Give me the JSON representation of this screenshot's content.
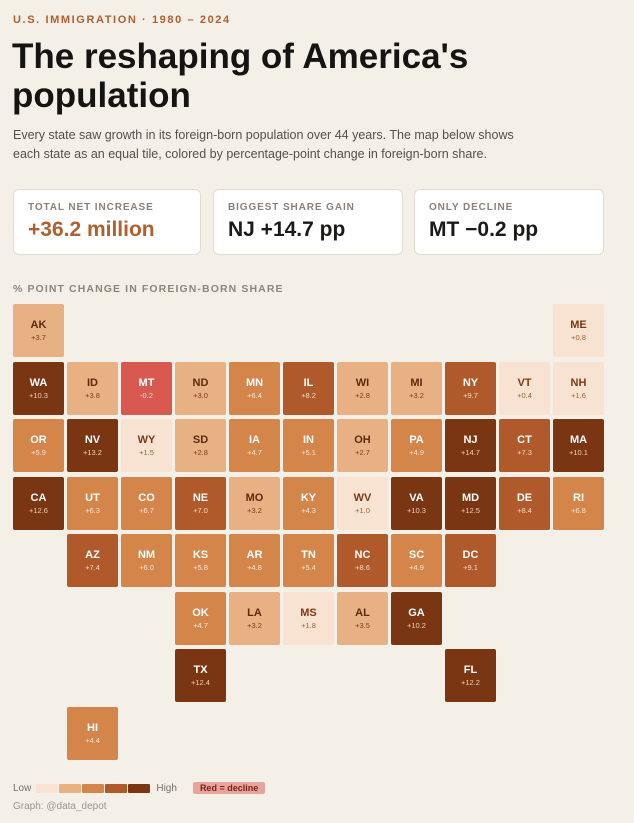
{
  "header": {
    "kicker": "U.S. IMMIGRATION · 1980 – 2024",
    "title": "The reshaping of America's population",
    "subtitle": "Every state saw growth in its foreign-born population over 44 years. The map below shows each state as an equal tile, colored by percentage-point change in foreign-born share."
  },
  "cards": [
    {
      "label": "TOTAL NET INCREASE",
      "value": "+36.2 million",
      "accent": true
    },
    {
      "label": "BIGGEST SHARE GAIN",
      "value": "NJ +14.7 pp",
      "accent": false
    },
    {
      "label": "ONLY DECLINE",
      "value": "MT −0.2 pp",
      "accent": false
    }
  ],
  "section_label": "% POINT CHANGE IN FOREIGN-BORN SHARE",
  "colors": {
    "background": "#f4efe7",
    "accent": "#b0602e",
    "scale": [
      "#f8e3d2",
      "#e8b184",
      "#d4854a",
      "#b0592b",
      "#7a3613"
    ],
    "decline": "#d9584f"
  },
  "chart_data": {
    "type": "heatmap",
    "layout": "tile-grid map",
    "value_unit": "pp",
    "states": [
      {
        "abbr": "AK",
        "label": "+3.7",
        "value": 3.7,
        "col": 0,
        "row": 0,
        "shade": 1
      },
      {
        "abbr": "ME",
        "label": "+0.8",
        "value": 0.8,
        "col": 10,
        "row": 0,
        "shade": 0
      },
      {
        "abbr": "WA",
        "label": "+10.3",
        "value": 10.3,
        "col": 0,
        "row": 1,
        "shade": 4
      },
      {
        "abbr": "ID",
        "label": "+3.8",
        "value": 3.8,
        "col": 1,
        "row": 1,
        "shade": 1
      },
      {
        "abbr": "MT",
        "label": "-0.2",
        "value": -0.2,
        "col": 2,
        "row": 1,
        "shade": "decline"
      },
      {
        "abbr": "ND",
        "label": "+3.0",
        "value": 3.0,
        "col": 3,
        "row": 1,
        "shade": 1
      },
      {
        "abbr": "MN",
        "label": "+6.4",
        "value": 6.4,
        "col": 4,
        "row": 1,
        "shade": 2
      },
      {
        "abbr": "IL",
        "label": "+8.2",
        "value": 8.2,
        "col": 5,
        "row": 1,
        "shade": 3
      },
      {
        "abbr": "WI",
        "label": "+2.8",
        "value": 2.8,
        "col": 6,
        "row": 1,
        "shade": 1
      },
      {
        "abbr": "MI",
        "label": "+3.2",
        "value": 3.2,
        "col": 7,
        "row": 1,
        "shade": 1
      },
      {
        "abbr": "NY",
        "label": "+9.7",
        "value": 9.7,
        "col": 8,
        "row": 1,
        "shade": 3
      },
      {
        "abbr": "VT",
        "label": "+0.4",
        "value": 0.4,
        "col": 9,
        "row": 1,
        "shade": 0
      },
      {
        "abbr": "NH",
        "label": "+1.6",
        "value": 1.6,
        "col": 10,
        "row": 1,
        "shade": 0
      },
      {
        "abbr": "OR",
        "label": "+5.9",
        "value": 5.9,
        "col": 0,
        "row": 2,
        "shade": 2
      },
      {
        "abbr": "NV",
        "label": "+13.2",
        "value": 13.2,
        "col": 1,
        "row": 2,
        "shade": 4
      },
      {
        "abbr": "WY",
        "label": "+1.5",
        "value": 1.5,
        "col": 2,
        "row": 2,
        "shade": 0
      },
      {
        "abbr": "SD",
        "label": "+2.8",
        "value": 2.8,
        "col": 3,
        "row": 2,
        "shade": 1
      },
      {
        "abbr": "IA",
        "label": "+4.7",
        "value": 4.7,
        "col": 4,
        "row": 2,
        "shade": 2
      },
      {
        "abbr": "IN",
        "label": "+5.1",
        "value": 5.1,
        "col": 5,
        "row": 2,
        "shade": 2
      },
      {
        "abbr": "OH",
        "label": "+2.7",
        "value": 2.7,
        "col": 6,
        "row": 2,
        "shade": 1
      },
      {
        "abbr": "PA",
        "label": "+4.9",
        "value": 4.9,
        "col": 7,
        "row": 2,
        "shade": 2
      },
      {
        "abbr": "NJ",
        "label": "+14.7",
        "value": 14.7,
        "col": 8,
        "row": 2,
        "shade": 4
      },
      {
        "abbr": "CT",
        "label": "+7.3",
        "value": 7.3,
        "col": 9,
        "row": 2,
        "shade": 3
      },
      {
        "abbr": "MA",
        "label": "+10.1",
        "value": 10.1,
        "col": 10,
        "row": 2,
        "shade": 4
      },
      {
        "abbr": "CA",
        "label": "+12.6",
        "value": 12.6,
        "col": 0,
        "row": 3,
        "shade": 4
      },
      {
        "abbr": "UT",
        "label": "+6.3",
        "value": 6.3,
        "col": 1,
        "row": 3,
        "shade": 2
      },
      {
        "abbr": "CO",
        "label": "+6.7",
        "value": 6.7,
        "col": 2,
        "row": 3,
        "shade": 2
      },
      {
        "abbr": "NE",
        "label": "+7.0",
        "value": 7.0,
        "col": 3,
        "row": 3,
        "shade": 3
      },
      {
        "abbr": "MO",
        "label": "+3.2",
        "value": 3.2,
        "col": 4,
        "row": 3,
        "shade": 1
      },
      {
        "abbr": "KY",
        "label": "+4.3",
        "value": 4.3,
        "col": 5,
        "row": 3,
        "shade": 2
      },
      {
        "abbr": "WV",
        "label": "+1.0",
        "value": 1.0,
        "col": 6,
        "row": 3,
        "shade": 0
      },
      {
        "abbr": "VA",
        "label": "+10.3",
        "value": 10.3,
        "col": 7,
        "row": 3,
        "shade": 4
      },
      {
        "abbr": "MD",
        "label": "+12.5",
        "value": 12.5,
        "col": 8,
        "row": 3,
        "shade": 4
      },
      {
        "abbr": "DE",
        "label": "+8.4",
        "value": 8.4,
        "col": 9,
        "row": 3,
        "shade": 3
      },
      {
        "abbr": "RI",
        "label": "+6.8",
        "value": 6.8,
        "col": 10,
        "row": 3,
        "shade": 2
      },
      {
        "abbr": "AZ",
        "label": "+7.4",
        "value": 7.4,
        "col": 1,
        "row": 4,
        "shade": 3
      },
      {
        "abbr": "NM",
        "label": "+6.0",
        "value": 6.0,
        "col": 2,
        "row": 4,
        "shade": 2
      },
      {
        "abbr": "KS",
        "label": "+5.8",
        "value": 5.8,
        "col": 3,
        "row": 4,
        "shade": 2
      },
      {
        "abbr": "AR",
        "label": "+4.8",
        "value": 4.8,
        "col": 4,
        "row": 4,
        "shade": 2
      },
      {
        "abbr": "TN",
        "label": "+5.4",
        "value": 5.4,
        "col": 5,
        "row": 4,
        "shade": 2
      },
      {
        "abbr": "NC",
        "label": "+8.6",
        "value": 8.6,
        "col": 6,
        "row": 4,
        "shade": 3
      },
      {
        "abbr": "SC",
        "label": "+4.9",
        "value": 4.9,
        "col": 7,
        "row": 4,
        "shade": 2
      },
      {
        "abbr": "DC",
        "label": "+9.1",
        "value": 9.1,
        "col": 8,
        "row": 4,
        "shade": 3
      },
      {
        "abbr": "OK",
        "label": "+4.7",
        "value": 4.7,
        "col": 3,
        "row": 5,
        "shade": 2
      },
      {
        "abbr": "LA",
        "label": "+3.2",
        "value": 3.2,
        "col": 4,
        "row": 5,
        "shade": 1
      },
      {
        "abbr": "MS",
        "label": "+1.8",
        "value": 1.8,
        "col": 5,
        "row": 5,
        "shade": 0
      },
      {
        "abbr": "AL",
        "label": "+3.5",
        "value": 3.5,
        "col": 6,
        "row": 5,
        "shade": 1
      },
      {
        "abbr": "GA",
        "label": "+10.2",
        "value": 10.2,
        "col": 7,
        "row": 5,
        "shade": 4
      },
      {
        "abbr": "TX",
        "label": "+12.4",
        "value": 12.4,
        "col": 3,
        "row": 6,
        "shade": 4
      },
      {
        "abbr": "FL",
        "label": "+12.2",
        "value": 12.2,
        "col": 8,
        "row": 6,
        "shade": 4
      },
      {
        "abbr": "HI",
        "label": "+4.4",
        "value": 4.4,
        "col": 1,
        "row": 7,
        "shade": 2
      }
    ]
  },
  "legend": {
    "low_label": "Low",
    "high_label": "High",
    "decline_label": "Red = decline"
  },
  "credit": "Graph: @data_depot"
}
